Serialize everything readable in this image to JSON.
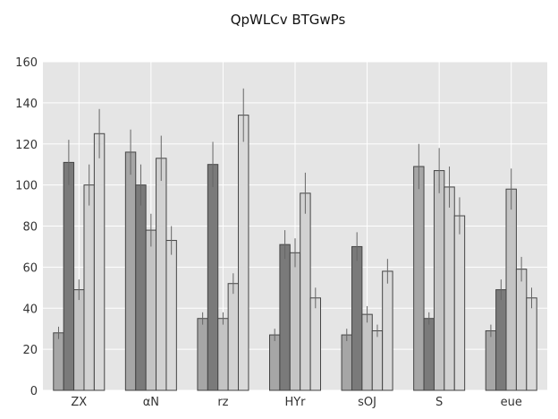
{
  "chart_data": {
    "type": "bar",
    "title": "QpWLCv BTGwPs",
    "xlabel": "",
    "ylabel": "",
    "categories": [
      "ZX",
      "αN",
      "rz",
      "HYr",
      "sOJ",
      "S",
      "eue"
    ],
    "ylim": [
      0,
      160
    ],
    "yticks": [
      0,
      20,
      40,
      60,
      80,
      100,
      120,
      140,
      160
    ],
    "grid": true,
    "legend": "none",
    "background": "#e5e5e5",
    "series": [
      {
        "color": "#a6a6a6",
        "values": [
          28,
          116,
          35,
          27,
          27,
          109,
          29
        ],
        "errors": [
          3,
          11,
          3,
          3,
          3,
          11,
          3
        ]
      },
      {
        "color": "#7a7a7a",
        "values": [
          111,
          100,
          110,
          71,
          70,
          35,
          49
        ],
        "errors": [
          11,
          10,
          11,
          7,
          7,
          3,
          5
        ]
      },
      {
        "color": "#c4c4c4",
        "values": [
          49,
          78,
          35,
          67,
          37,
          107,
          98
        ],
        "errors": [
          5,
          8,
          3,
          7,
          4,
          11,
          10
        ]
      },
      {
        "color": "#d2d2d2",
        "values": [
          100,
          113,
          52,
          96,
          29,
          99,
          59
        ],
        "errors": [
          10,
          11,
          5,
          10,
          3,
          10,
          6
        ]
      },
      {
        "color": "#dadada",
        "values": [
          125,
          73,
          134,
          45,
          58,
          85,
          45
        ],
        "errors": [
          12,
          7,
          13,
          5,
          6,
          9,
          5
        ]
      }
    ]
  }
}
